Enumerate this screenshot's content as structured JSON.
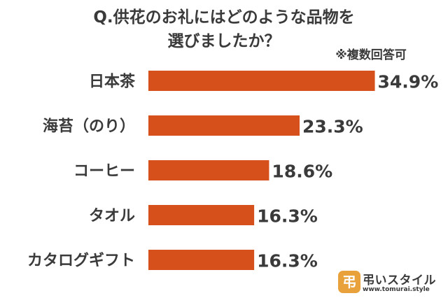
{
  "chart_data": {
    "type": "bar",
    "orientation": "horizontal",
    "title": [
      "Q.供花のお礼にはどのような品物を",
      "選びましたか？"
    ],
    "subtitle": "※複数回答可",
    "categories": [
      "日本茶",
      "海苔（のり）",
      "コーヒー",
      "タオル",
      "カタログギフト"
    ],
    "values": [
      34.9,
      23.3,
      18.6,
      16.3,
      16.3
    ],
    "value_labels": [
      "34.9%",
      "23.3%",
      "18.6%",
      "16.3%",
      "16.3%"
    ],
    "bar_color": "#d6501b",
    "grid": false,
    "legend": "none"
  },
  "branding": {
    "logo_text": "弔いスタイル",
    "logo_url": "www.tomurai.style",
    "logo_color": "#e9a23b"
  }
}
